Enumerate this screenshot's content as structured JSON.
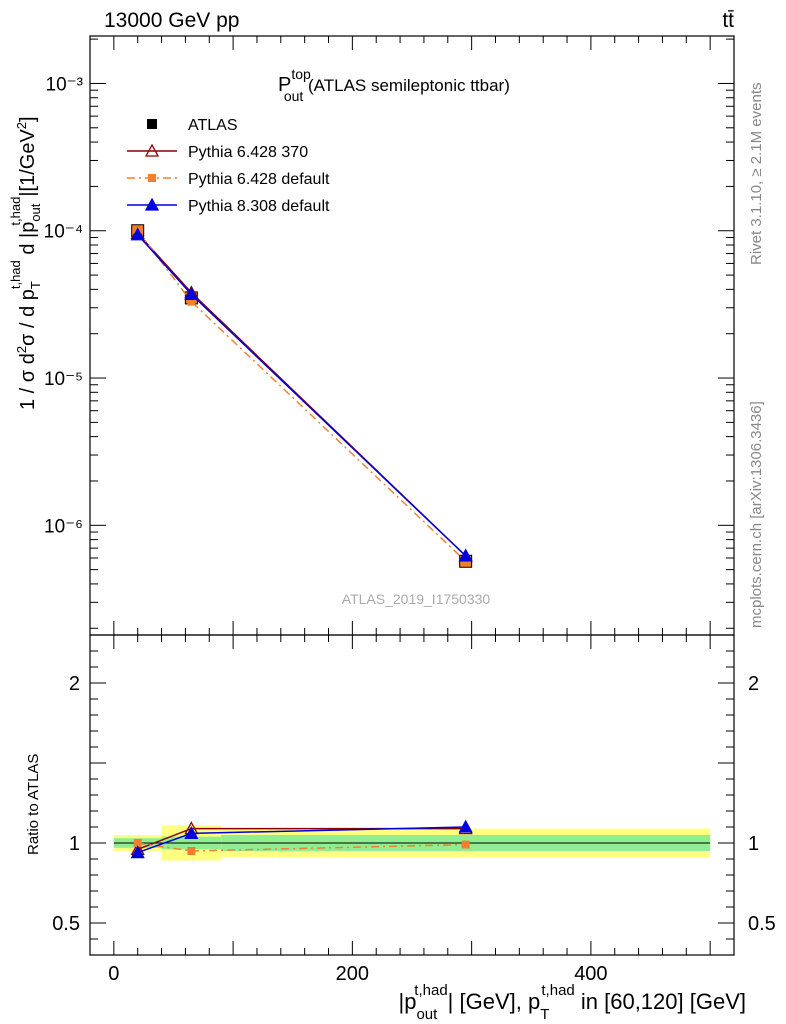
{
  "header": {
    "left": "13000 GeV pp",
    "right": "tt̄"
  },
  "side": {
    "rivet": "Rivet 3.1.10, ≥ 2.1M events",
    "mcplots": "mcplots.cern.ch [arXiv:1306.3436]"
  },
  "title": {
    "main": "P",
    "sup": "top",
    "sub": "out",
    "rest": " (ATLAS semileptonic ttbar)"
  },
  "watermark": "ATLAS_2019_I1750330",
  "colors": {
    "atlas": "#000000",
    "py6_370": "#8b0000",
    "py6_def": "#f08030",
    "py8_def": "#0000dd",
    "band_inner": "#90ee90",
    "band_outer": "#ffff80"
  },
  "chart_data": {
    "type": "line",
    "x_label": "|p_out^t,had| [GeV], p_T^t,had in [60,120] [GeV]",
    "y_label": "1 / σ d²σ / d p_T^t,had d |p_out^t,had| [1/GeV²]",
    "ratio_label": "Ratio to ATLAS",
    "xlim": [
      -20,
      520
    ],
    "ylim": [
      1.8e-07,
      0.0021
    ],
    "ylog": true,
    "ratio_ylim": [
      0.3,
      2.3
    ],
    "x_ticks": [
      "0",
      "200",
      "400"
    ],
    "y_ticks": [
      "10⁻⁶",
      "10⁻⁵",
      "10⁻⁴",
      "10⁻³"
    ],
    "ratio_ticks": [
      "0.5",
      "1",
      "2"
    ],
    "bins": [
      [
        0,
        40
      ],
      [
        40,
        90
      ],
      [
        90,
        500
      ]
    ],
    "x": [
      20,
      65,
      295
    ],
    "series": [
      {
        "name": "ATLAS",
        "values": [
          0.0001,
          3.5e-05,
          5.7e-07
        ],
        "ratio": [
          1.0,
          1.0,
          1.0
        ],
        "band_inner": [
          0.03,
          0.04,
          0.05
        ],
        "band_outer": [
          0.05,
          0.11,
          0.09
        ]
      },
      {
        "name": "Pythia 6.428 370",
        "values": [
          9.6e-05,
          3.8e-05,
          6.2e-07
        ],
        "ratio": [
          0.96,
          1.09,
          1.09
        ]
      },
      {
        "name": "Pythia 6.428 default",
        "values": [
          0.0001,
          3.3e-05,
          5.7e-07
        ],
        "ratio": [
          1.0,
          0.95,
          0.99
        ]
      },
      {
        "name": "Pythia 8.308 default",
        "values": [
          9.4e-05,
          3.7e-05,
          6.2e-07
        ],
        "ratio": [
          0.94,
          1.06,
          1.1
        ]
      }
    ]
  }
}
